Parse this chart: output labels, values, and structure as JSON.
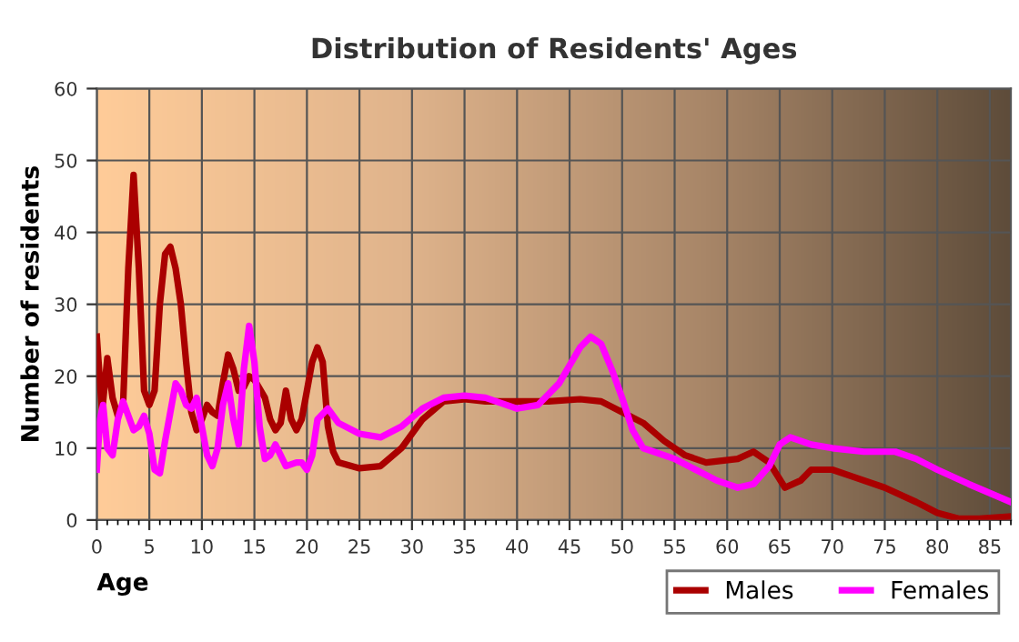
{
  "chart_data": {
    "type": "line",
    "title": "Distribution of Residents' Ages",
    "xlabel": "Age",
    "ylabel": "Number of residents",
    "xlim": [
      0,
      87
    ],
    "xticks": [
      0,
      5,
      10,
      15,
      20,
      25,
      30,
      35,
      40,
      45,
      50,
      55,
      60,
      65,
      70,
      75,
      80,
      85
    ],
    "ylim": [
      0,
      60
    ],
    "yticks": [
      0,
      10,
      20,
      30,
      40,
      50,
      60
    ],
    "grid": true,
    "legend": "bottom right",
    "marker": "none",
    "line_style": "solid",
    "series": [
      {
        "name": "Males",
        "color": "#aa0000",
        "x": [
          0,
          0.5,
          1,
          1.5,
          2,
          2.5,
          3,
          3.5,
          4,
          4.5,
          5,
          5.5,
          6,
          6.5,
          7,
          7.5,
          8,
          8.5,
          9,
          9.5,
          10,
          10.5,
          11,
          11.5,
          12,
          12.5,
          13,
          13.5,
          14,
          14.5,
          15,
          16,
          16.5,
          17,
          17.5,
          18,
          18.5,
          19,
          19.5,
          20,
          20.5,
          21,
          21.5,
          22,
          22.5,
          23,
          25,
          27,
          29,
          31,
          33,
          35,
          37,
          40,
          43,
          46,
          48,
          50,
          52,
          54,
          56,
          58,
          61,
          62.5,
          64,
          65.5,
          67,
          68,
          70,
          72,
          75,
          78,
          80,
          82,
          84,
          87
        ],
        "values": [
          25.5,
          15,
          22.5,
          17,
          14.5,
          16,
          35,
          48,
          35,
          18,
          16,
          18,
          30,
          37,
          38,
          35,
          30,
          22,
          15,
          12.5,
          14,
          16,
          15,
          14.5,
          19,
          23,
          21,
          18,
          18.5,
          20,
          19.5,
          17,
          14,
          12.5,
          13.5,
          18,
          14,
          12.5,
          14,
          18,
          22,
          24,
          22,
          13,
          9.5,
          8,
          7.2,
          7.5,
          10,
          14,
          16.5,
          16.8,
          16.5,
          16.5,
          16.5,
          16.8,
          16.5,
          15,
          13.5,
          11,
          9,
          8,
          8.5,
          9.5,
          8,
          4.5,
          5.5,
          7,
          7,
          6,
          4.5,
          2.5,
          1,
          0.2,
          0.2,
          0.5
        ]
      },
      {
        "name": "Females",
        "color": "#ff00ff",
        "x": [
          0,
          0.3,
          0.6,
          1,
          1.5,
          2,
          2.5,
          3,
          3.5,
          4,
          4.5,
          5,
          5.5,
          6,
          6.5,
          7,
          7.5,
          8,
          8.5,
          9,
          9.5,
          10,
          10.5,
          11,
          11.5,
          12,
          12.5,
          13,
          13.5,
          14,
          14.5,
          15,
          15.5,
          16,
          16.5,
          17,
          17.5,
          18,
          19,
          19.5,
          20,
          20.5,
          21,
          22,
          23,
          25,
          27,
          29,
          31,
          33,
          35,
          37,
          39,
          40,
          42,
          44,
          46,
          47,
          48,
          49,
          50,
          51,
          52,
          55,
          57,
          59,
          61,
          62.5,
          64,
          65,
          66,
          67,
          68,
          70,
          73,
          76,
          78,
          80,
          83,
          87
        ],
        "values": [
          7,
          14,
          16,
          10,
          9,
          14,
          16.5,
          14.5,
          12.5,
          13,
          14.5,
          12,
          7,
          6.5,
          11,
          15,
          19,
          18,
          16,
          15.5,
          17,
          13,
          9,
          7.5,
          10,
          16,
          19,
          14,
          10.5,
          21,
          27,
          22,
          13,
          8.5,
          9,
          10.5,
          9,
          7.5,
          8,
          8,
          7,
          9,
          14,
          15.5,
          13.5,
          12,
          11.5,
          13,
          15.5,
          17,
          17.3,
          17,
          16,
          15.5,
          16,
          19,
          24,
          25.5,
          24.5,
          21,
          17,
          12.5,
          10,
          8.5,
          7,
          5.5,
          4.5,
          5,
          7.5,
          10.5,
          11.5,
          11,
          10.5,
          10,
          9.5,
          9.5,
          8.5,
          7,
          5,
          2.5
        ]
      }
    ]
  }
}
